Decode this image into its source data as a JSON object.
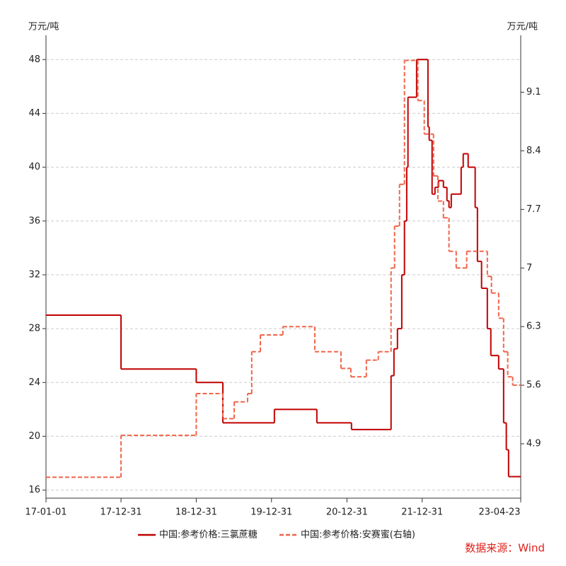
{
  "chart_data": {
    "type": "line",
    "step": true,
    "y_label": "万元/吨",
    "y2_label": "万元/吨",
    "source": "数据来源：Wind",
    "xlim": [
      "17-01-01",
      "23-04-23"
    ],
    "xticks": [
      "17-01-01",
      "17-12-31",
      "18-12-31",
      "19-12-31",
      "20-12-31",
      "21-12-31",
      "23-04-23"
    ],
    "ylim": [
      15.4,
      49.8
    ],
    "yticks": [
      16,
      20,
      24,
      28,
      32,
      36,
      40,
      44,
      48
    ],
    "y2lim": [
      4.25,
      9.78
    ],
    "y2ticks": [
      4.9,
      5.6,
      6.3,
      7,
      7.7,
      8.4,
      9.1
    ],
    "grid": true,
    "legend": "bottom",
    "series": [
      {
        "name": "中国:参考价格:三氯蔗糖",
        "color": "#c00000",
        "dash": false,
        "x": [
          "17-01-01",
          "17-12-31",
          "18-12-31",
          "19-05-09",
          "20-01-14",
          "20-08-07",
          "21-01-22",
          "21-08-02",
          "21-08-16",
          "21-09-02",
          "21-09-23",
          "21-10-06",
          "21-10-17",
          "21-10-23",
          "21-12-04",
          "22-01-28",
          "22-02-03",
          "22-02-17",
          "22-03-03",
          "22-03-20",
          "22-04-13",
          "22-04-30",
          "22-05-10",
          "22-05-21",
          "22-07-08",
          "22-07-18",
          "22-08-11",
          "22-09-14",
          "22-09-25",
          "22-10-15",
          "22-11-12",
          "22-11-29",
          "23-01-06",
          "23-01-30",
          "23-02-12",
          "23-02-23",
          "23-03-12",
          "23-04-23"
        ],
        "values": [
          29,
          25,
          24,
          21,
          22,
          21,
          20.5,
          24.5,
          26.5,
          28,
          32,
          36,
          40,
          45.2,
          48,
          43,
          42,
          38,
          38.5,
          39,
          38.5,
          37.5,
          37,
          38,
          40,
          41,
          40,
          37,
          33,
          31,
          28,
          26,
          25,
          21,
          19,
          17,
          17,
          17
        ]
      },
      {
        "name": "中国:参考价格:安赛蜜(右轴)",
        "color": "#f0654a",
        "dash": true,
        "axis": "y2",
        "x": [
          "17-01-01",
          "17-12-31",
          "18-12-31",
          "19-05-09",
          "19-07-03",
          "19-09-06",
          "19-09-26",
          "19-11-07",
          "20-02-24",
          "20-07-28",
          "20-12-02",
          "21-01-19",
          "21-04-04",
          "21-06-01",
          "21-08-02",
          "21-08-19",
          "21-09-12",
          "21-10-06",
          "21-12-10",
          "22-01-10",
          "22-02-24",
          "22-03-17",
          "22-04-13",
          "22-05-10",
          "22-06-14",
          "22-08-04",
          "22-11-12",
          "22-12-02",
          "23-01-06",
          "23-01-30",
          "23-02-19",
          "23-03-15",
          "23-04-23"
        ],
        "values": [
          4.5,
          5.0,
          5.5,
          5.2,
          5.4,
          5.5,
          6.0,
          6.2,
          6.3,
          6.0,
          5.8,
          5.7,
          5.9,
          6.0,
          7.0,
          7.5,
          8.0,
          9.48,
          9.0,
          8.6,
          8.1,
          7.8,
          7.6,
          7.2,
          7.0,
          7.2,
          6.9,
          6.7,
          6.4,
          6.0,
          5.7,
          5.6,
          5.6
        ]
      }
    ]
  }
}
